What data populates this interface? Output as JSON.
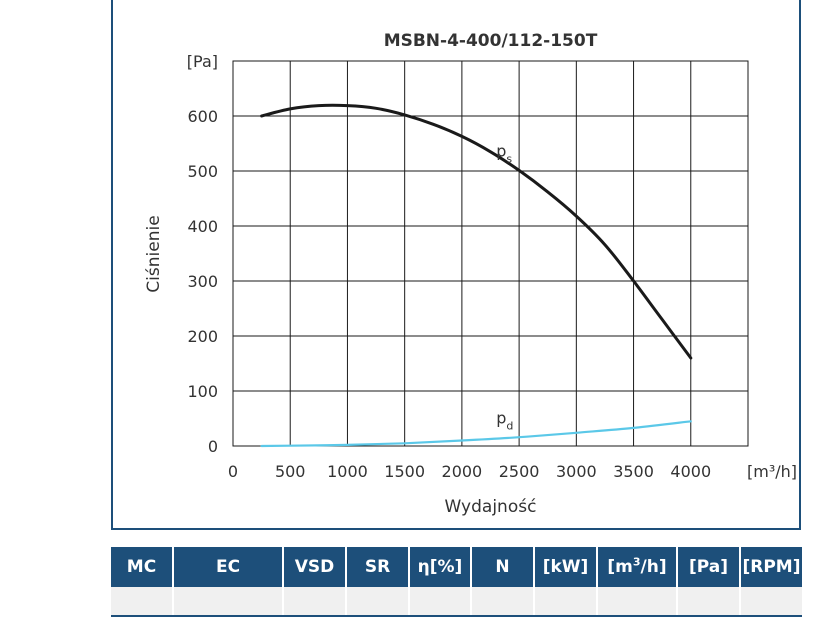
{
  "chart_data": {
    "type": "line",
    "title": "MSBN-4-400/112-150T",
    "xlabel": "Wydajność",
    "ylabel": "Ciśnienie",
    "x_unit": "[m³/h]",
    "y_unit": "[Pa]",
    "xlim": [
      0,
      4500
    ],
    "ylim": [
      0,
      700
    ],
    "x_ticks": [
      0,
      500,
      1000,
      1500,
      2000,
      2500,
      3000,
      3500,
      4000
    ],
    "y_ticks": [
      0,
      100,
      200,
      300,
      400,
      500,
      600
    ],
    "grid": true,
    "series": [
      {
        "name": "ps",
        "label_main": "p",
        "label_sub": "s",
        "color": "#1a1a1a",
        "x": [
          250,
          500,
          750,
          1000,
          1250,
          1500,
          1750,
          2000,
          2250,
          2500,
          2750,
          3000,
          3250,
          3500,
          3750,
          4000
        ],
        "y": [
          600,
          613,
          619,
          619,
          614,
          602,
          585,
          563,
          535,
          501,
          462,
          418,
          366,
          300,
          230,
          160
        ]
      },
      {
        "name": "pd",
        "label_main": "p",
        "label_sub": "d",
        "color": "#5bc8e8",
        "x": [
          250,
          500,
          1000,
          1500,
          2000,
          2500,
          3000,
          3500,
          4000
        ],
        "y": [
          0,
          0.5,
          2,
          5,
          10,
          16,
          24,
          33,
          45
        ]
      }
    ]
  },
  "table": {
    "headers": [
      {
        "main": "MC",
        "sup": "",
        "tail": ""
      },
      {
        "main": "EC",
        "sup": "",
        "tail": ""
      },
      {
        "main": "VSD",
        "sup": "",
        "tail": ""
      },
      {
        "main": "SR",
        "sup": "",
        "tail": ""
      },
      {
        "main": "η[%]",
        "sup": "",
        "tail": ""
      },
      {
        "main": "N",
        "sup": "",
        "tail": ""
      },
      {
        "main": "[kW]",
        "sup": "",
        "tail": ""
      },
      {
        "main": "[m",
        "sup": "3",
        "tail": "/h]"
      },
      {
        "main": "[Pa]",
        "sup": "",
        "tail": ""
      },
      {
        "main": "[RPM]",
        "sup": "",
        "tail": ""
      }
    ],
    "rows": [
      [
        "",
        "",
        "",
        "",
        "",
        "",
        "",
        "",
        "",
        ""
      ]
    ]
  },
  "colors": {
    "frame": "#1d4f7a",
    "header_bg": "#1d4f7a",
    "row_bg": "#f0f0f0",
    "ps_line": "#1a1a1a",
    "pd_line": "#5bc8e8"
  }
}
